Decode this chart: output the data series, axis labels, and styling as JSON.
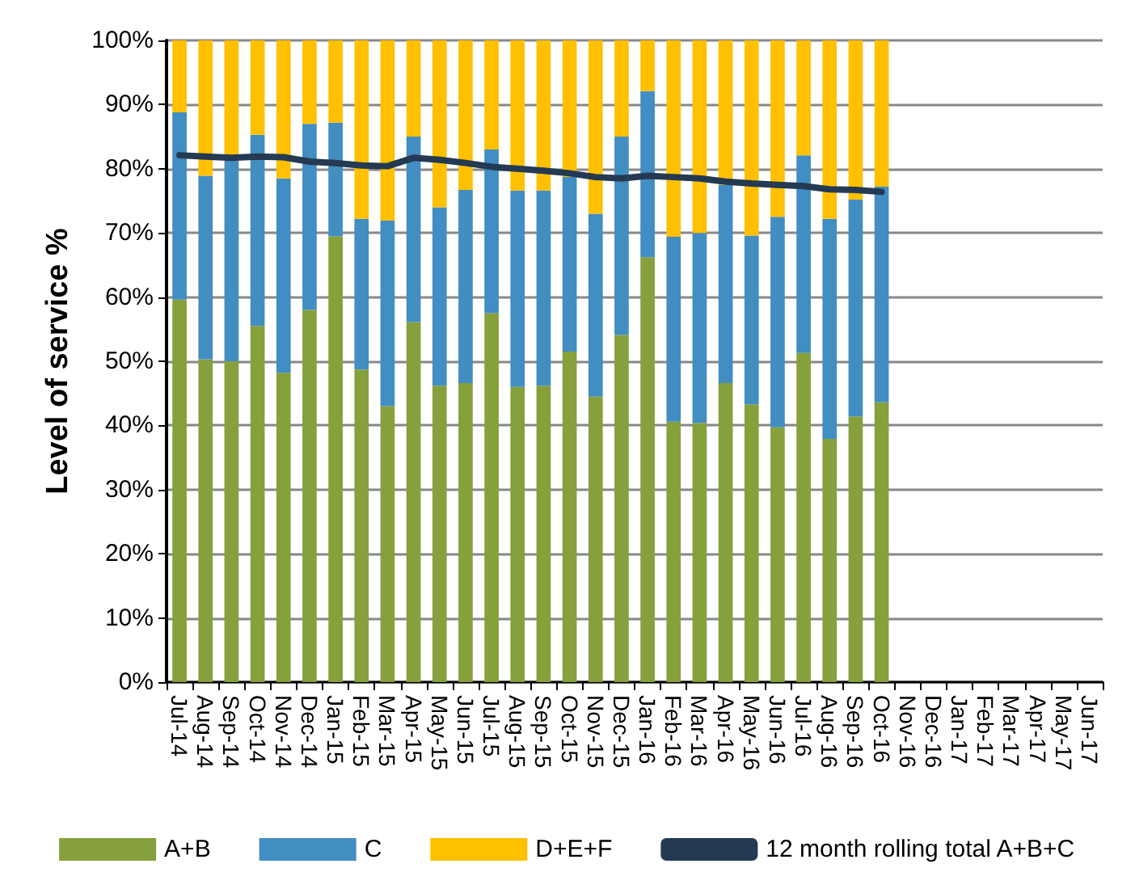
{
  "chart_data": {
    "type": "bar",
    "stacked": true,
    "ylabel": "Level of service %",
    "categories": [
      "Jul-14",
      "Aug-14",
      "Sep-14",
      "Oct-14",
      "Nov-14",
      "Dec-14",
      "Jan-15",
      "Feb-15",
      "Mar-15",
      "Apr-15",
      "May-15",
      "Jun-15",
      "Jul-15",
      "Aug-15",
      "Sep-15",
      "Oct-15",
      "Nov-15",
      "Dec-15",
      "Jan-16",
      "Feb-16",
      "Mar-16",
      "Apr-16",
      "May-16",
      "Jun-16",
      "Jul-16",
      "Aug-16",
      "Sep-16",
      "Oct-16",
      "Nov-16",
      "Dec-16",
      "Jan-17",
      "Feb-17",
      "Mar-17",
      "Apr-17",
      "May-17",
      "Jun-17"
    ],
    "series": [
      {
        "name": "A+B",
        "color": "#86a03c",
        "values": [
          59.6,
          50.3,
          50.0,
          55.5,
          48.2,
          58.0,
          69.5,
          48.7,
          43.0,
          56.1,
          46.2,
          46.6,
          57.5,
          46.0,
          46.2,
          51.5,
          44.5,
          54.1,
          66.2,
          40.6,
          40.4,
          46.6,
          43.3,
          39.7,
          51.3,
          37.9,
          41.4,
          43.6,
          null,
          null,
          null,
          null,
          null,
          null,
          null,
          null
        ]
      },
      {
        "name": "C",
        "color": "#428dc1",
        "values": [
          29.2,
          28.6,
          31.3,
          29.8,
          30.3,
          29.0,
          17.7,
          23.5,
          28.9,
          28.9,
          27.8,
          30.1,
          25.5,
          30.6,
          30.4,
          27.2,
          28.5,
          30.9,
          25.9,
          28.8,
          29.6,
          30.9,
          26.3,
          32.8,
          30.8,
          34.3,
          33.8,
          33.6,
          null,
          null,
          null,
          null,
          null,
          null,
          null,
          null
        ]
      },
      {
        "name": "D+E+F",
        "color": "#ffc000",
        "values": [
          11.2,
          21.1,
          18.7,
          14.7,
          21.5,
          13.0,
          12.8,
          27.8,
          28.1,
          15.0,
          26.0,
          23.3,
          17.0,
          23.4,
          23.4,
          21.3,
          27.0,
          15.0,
          7.9,
          30.6,
          30.0,
          22.5,
          30.4,
          27.5,
          17.9,
          27.8,
          24.8,
          22.8,
          null,
          null,
          null,
          null,
          null,
          null,
          null,
          null
        ]
      },
      {
        "name": "12 month rolling total A+B+C",
        "type": "line",
        "color": "#243a52",
        "values": [
          82.1,
          81.9,
          81.7,
          81.9,
          81.8,
          81.1,
          80.9,
          80.5,
          80.4,
          81.7,
          81.4,
          80.9,
          80.3,
          80.0,
          79.7,
          79.3,
          78.7,
          78.5,
          78.9,
          78.7,
          78.5,
          78.0,
          77.7,
          77.5,
          77.3,
          76.8,
          76.7,
          76.4,
          null,
          null,
          null,
          null,
          null,
          null,
          null,
          null
        ]
      }
    ],
    "ylim": [
      0,
      100
    ],
    "yticks": [
      {
        "value": 0,
        "label": "0%"
      },
      {
        "value": 10,
        "label": "10%"
      },
      {
        "value": 20,
        "label": "20%"
      },
      {
        "value": 30,
        "label": "30%"
      },
      {
        "value": 40,
        "label": "40%"
      },
      {
        "value": 50,
        "label": "50%"
      },
      {
        "value": 60,
        "label": "60%"
      },
      {
        "value": 70,
        "label": "70%"
      },
      {
        "value": 80,
        "label": "80%"
      },
      {
        "value": 90,
        "label": "90%"
      },
      {
        "value": 100,
        "label": "100%"
      }
    ],
    "grid": "y",
    "legend": "bottom",
    "marker": "none",
    "line_style": "solid"
  }
}
